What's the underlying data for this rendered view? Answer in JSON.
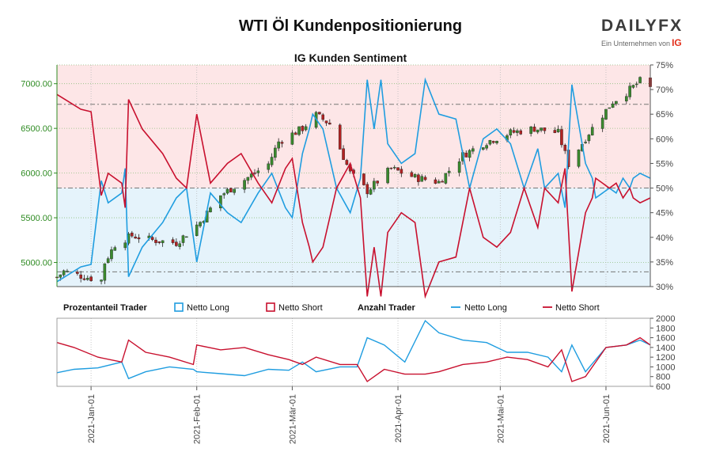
{
  "title": "WTI Öl Kundenpositionierung",
  "brand": {
    "name": "DAILYFX",
    "tagline": "Ein Unternehmen von",
    "parent": "IG"
  },
  "colors": {
    "long": "#1f9de0",
    "short": "#c8102e",
    "candle_up": "#3a8a2e",
    "candle_down": "#b22222",
    "price_axis": "#2e8b22",
    "zone_short_bg": "#fde6e7",
    "zone_long_bg": "#e5f3fb"
  },
  "chart_data": [
    {
      "type": "candlestick-with-line",
      "title": "IG Kunden Sentiment",
      "y_left": {
        "ticks": [
          5000,
          5500,
          6000,
          6500,
          7000
        ],
        "tick_labels": [
          "5000.00",
          "5500.00",
          "6000.00",
          "6500.00",
          "7000.00"
        ],
        "range": [
          4730,
          7210
        ]
      },
      "y_right": {
        "unit": "%",
        "ticks": [
          30,
          35,
          40,
          45,
          50,
          55,
          60,
          65,
          70,
          75
        ],
        "tick_labels": [
          "30%",
          "35%",
          "40%",
          "45%",
          "50%",
          "55%",
          "60%",
          "65%",
          "70%",
          "75%"
        ],
        "range": [
          30,
          75
        ]
      },
      "reference_levels_pct": [
        33,
        50,
        67
      ],
      "price_key": [
        [
          "2020-12-22",
          4835
        ],
        [
          "2020-12-24",
          4900
        ],
        [
          "2020-12-30",
          4840
        ],
        [
          "2021-01-04",
          4800
        ],
        [
          "2021-01-05",
          5000
        ],
        [
          "2021-01-08",
          5200
        ],
        [
          "2021-01-13",
          5300
        ],
        [
          "2021-01-19",
          5250
        ],
        [
          "2021-01-26",
          5220
        ],
        [
          "2021-02-02",
          5450
        ],
        [
          "2021-02-08",
          5750
        ],
        [
          "2021-02-16",
          5950
        ],
        [
          "2021-02-22",
          6100
        ],
        [
          "2021-02-25",
          6350
        ],
        [
          "2021-03-04",
          6500
        ],
        [
          "2021-03-08",
          6650
        ],
        [
          "2021-03-12",
          6550
        ],
        [
          "2021-03-18",
          6000
        ],
        [
          "2021-03-23",
          5800
        ],
        [
          "2021-03-30",
          6050
        ],
        [
          "2021-04-06",
          5950
        ],
        [
          "2021-04-13",
          5900
        ],
        [
          "2021-04-20",
          6200
        ],
        [
          "2021-04-27",
          6350
        ],
        [
          "2021-05-04",
          6450
        ],
        [
          "2021-05-11",
          6500
        ],
        [
          "2021-05-18",
          6450
        ],
        [
          "2021-05-21",
          6100
        ],
        [
          "2021-05-27",
          6450
        ],
        [
          "2021-06-03",
          6800
        ],
        [
          "2021-06-07",
          6900
        ],
        [
          "2021-06-11",
          7030
        ],
        [
          "2021-06-14",
          6950
        ]
      ],
      "net_long_pct": [
        [
          "2020-12-22",
          31
        ],
        [
          "2020-12-29",
          34
        ],
        [
          "2021-01-01",
          34.5
        ],
        [
          "2021-01-04",
          51.5
        ],
        [
          "2021-01-06",
          47
        ],
        [
          "2021-01-10",
          49
        ],
        [
          "2021-01-11",
          54
        ],
        [
          "2021-01-12",
          32
        ],
        [
          "2021-01-16",
          38
        ],
        [
          "2021-01-22",
          43
        ],
        [
          "2021-01-26",
          48
        ],
        [
          "2021-01-29",
          50
        ],
        [
          "2021-02-01",
          35
        ],
        [
          "2021-02-05",
          49
        ],
        [
          "2021-02-10",
          45
        ],
        [
          "2021-02-14",
          43
        ],
        [
          "2021-02-19",
          49
        ],
        [
          "2021-02-23",
          53
        ],
        [
          "2021-02-27",
          46
        ],
        [
          "2021-03-01",
          44
        ],
        [
          "2021-03-04",
          57
        ],
        [
          "2021-03-06",
          62
        ],
        [
          "2021-03-07",
          65
        ],
        [
          "2021-03-10",
          62
        ],
        [
          "2021-03-14",
          50
        ],
        [
          "2021-03-18",
          45
        ],
        [
          "2021-03-21",
          52
        ],
        [
          "2021-03-23",
          72
        ],
        [
          "2021-03-25",
          62
        ],
        [
          "2021-03-27",
          72
        ],
        [
          "2021-03-29",
          59
        ],
        [
          "2021-04-02",
          55
        ],
        [
          "2021-04-06",
          57
        ],
        [
          "2021-04-09",
          72
        ],
        [
          "2021-04-13",
          65
        ],
        [
          "2021-04-18",
          64
        ],
        [
          "2021-04-22",
          50
        ],
        [
          "2021-04-26",
          60
        ],
        [
          "2021-04-30",
          62
        ],
        [
          "2021-05-04",
          59
        ],
        [
          "2021-05-08",
          50
        ],
        [
          "2021-05-12",
          58
        ],
        [
          "2021-05-14",
          50
        ],
        [
          "2021-05-18",
          53
        ],
        [
          "2021-05-20",
          46
        ],
        [
          "2021-05-22",
          71
        ],
        [
          "2021-05-26",
          55
        ],
        [
          "2021-05-28",
          52
        ],
        [
          "2021-05-29",
          48
        ],
        [
          "2021-06-02",
          50
        ],
        [
          "2021-06-04",
          49
        ],
        [
          "2021-06-06",
          52
        ],
        [
          "2021-06-08",
          50
        ],
        [
          "2021-06-09",
          52
        ],
        [
          "2021-06-11",
          53
        ],
        [
          "2021-06-14",
          52
        ]
      ]
    },
    {
      "type": "line",
      "legend": {
        "group1_title": "Prozentanteil Trader",
        "group1_items": [
          "Netto Long",
          "Netto Short"
        ],
        "group2_title": "Anzahl Trader",
        "group2_items": [
          "Netto Long",
          "Netto Short"
        ]
      },
      "y_right": {
        "ticks": [
          600,
          800,
          1000,
          1200,
          1400,
          1600,
          1800,
          2000
        ],
        "tick_labels": [
          "600",
          "800",
          "1000",
          "1200",
          "1400",
          "1600",
          "1800",
          "2000"
        ],
        "range": [
          600,
          2000
        ]
      },
      "x": {
        "range": [
          "2020-12-22",
          "2021-06-14"
        ],
        "ticks": [
          "2021-01-01",
          "2021-02-01",
          "2021-03-01",
          "2021-04-01",
          "2021-05-01",
          "2021-06-01"
        ],
        "tick_labels": [
          "2021-Jan-01",
          "2021-Feb-01",
          "2021-Mär-01",
          "2021-Apr-01",
          "2021-Mai-01",
          "2021-Jun-01"
        ]
      },
      "net_long_count": [
        [
          "2020-12-22",
          880
        ],
        [
          "2020-12-27",
          950
        ],
        [
          "2021-01-03",
          980
        ],
        [
          "2021-01-10",
          1100
        ],
        [
          "2021-01-12",
          760
        ],
        [
          "2021-01-17",
          900
        ],
        [
          "2021-01-24",
          1000
        ],
        [
          "2021-01-31",
          950
        ],
        [
          "2021-02-01",
          900
        ],
        [
          "2021-02-08",
          860
        ],
        [
          "2021-02-15",
          820
        ],
        [
          "2021-02-22",
          950
        ],
        [
          "2021-02-28",
          930
        ],
        [
          "2021-03-04",
          1100
        ],
        [
          "2021-03-08",
          900
        ],
        [
          "2021-03-15",
          1000
        ],
        [
          "2021-03-20",
          1000
        ],
        [
          "2021-03-23",
          1600
        ],
        [
          "2021-03-28",
          1450
        ],
        [
          "2021-04-03",
          1100
        ],
        [
          "2021-04-09",
          1950
        ],
        [
          "2021-04-13",
          1700
        ],
        [
          "2021-04-20",
          1550
        ],
        [
          "2021-04-27",
          1500
        ],
        [
          "2021-05-03",
          1300
        ],
        [
          "2021-05-09",
          1300
        ],
        [
          "2021-05-15",
          1200
        ],
        [
          "2021-05-19",
          900
        ],
        [
          "2021-05-22",
          1450
        ],
        [
          "2021-05-26",
          900
        ],
        [
          "2021-06-01",
          1400
        ],
        [
          "2021-06-07",
          1450
        ],
        [
          "2021-06-11",
          1550
        ],
        [
          "2021-06-14",
          1450
        ]
      ],
      "net_short_count": [
        [
          "2020-12-22",
          1500
        ],
        [
          "2020-12-27",
          1400
        ],
        [
          "2021-01-03",
          1200
        ],
        [
          "2021-01-10",
          1100
        ],
        [
          "2021-01-12",
          1550
        ],
        [
          "2021-01-17",
          1300
        ],
        [
          "2021-01-24",
          1200
        ],
        [
          "2021-01-31",
          1050
        ],
        [
          "2021-02-01",
          1450
        ],
        [
          "2021-02-08",
          1350
        ],
        [
          "2021-02-15",
          1400
        ],
        [
          "2021-02-22",
          1250
        ],
        [
          "2021-02-28",
          1150
        ],
        [
          "2021-03-04",
          1050
        ],
        [
          "2021-03-08",
          1200
        ],
        [
          "2021-03-15",
          1050
        ],
        [
          "2021-03-20",
          1050
        ],
        [
          "2021-03-23",
          700
        ],
        [
          "2021-03-28",
          950
        ],
        [
          "2021-04-03",
          850
        ],
        [
          "2021-04-09",
          850
        ],
        [
          "2021-04-13",
          900
        ],
        [
          "2021-04-20",
          1050
        ],
        [
          "2021-04-27",
          1100
        ],
        [
          "2021-05-03",
          1200
        ],
        [
          "2021-05-09",
          1150
        ],
        [
          "2021-05-15",
          1000
        ],
        [
          "2021-05-19",
          1350
        ],
        [
          "2021-05-22",
          700
        ],
        [
          "2021-05-26",
          800
        ],
        [
          "2021-06-01",
          1400
        ],
        [
          "2021-06-07",
          1450
        ],
        [
          "2021-06-11",
          1600
        ],
        [
          "2021-06-14",
          1450
        ]
      ]
    }
  ]
}
